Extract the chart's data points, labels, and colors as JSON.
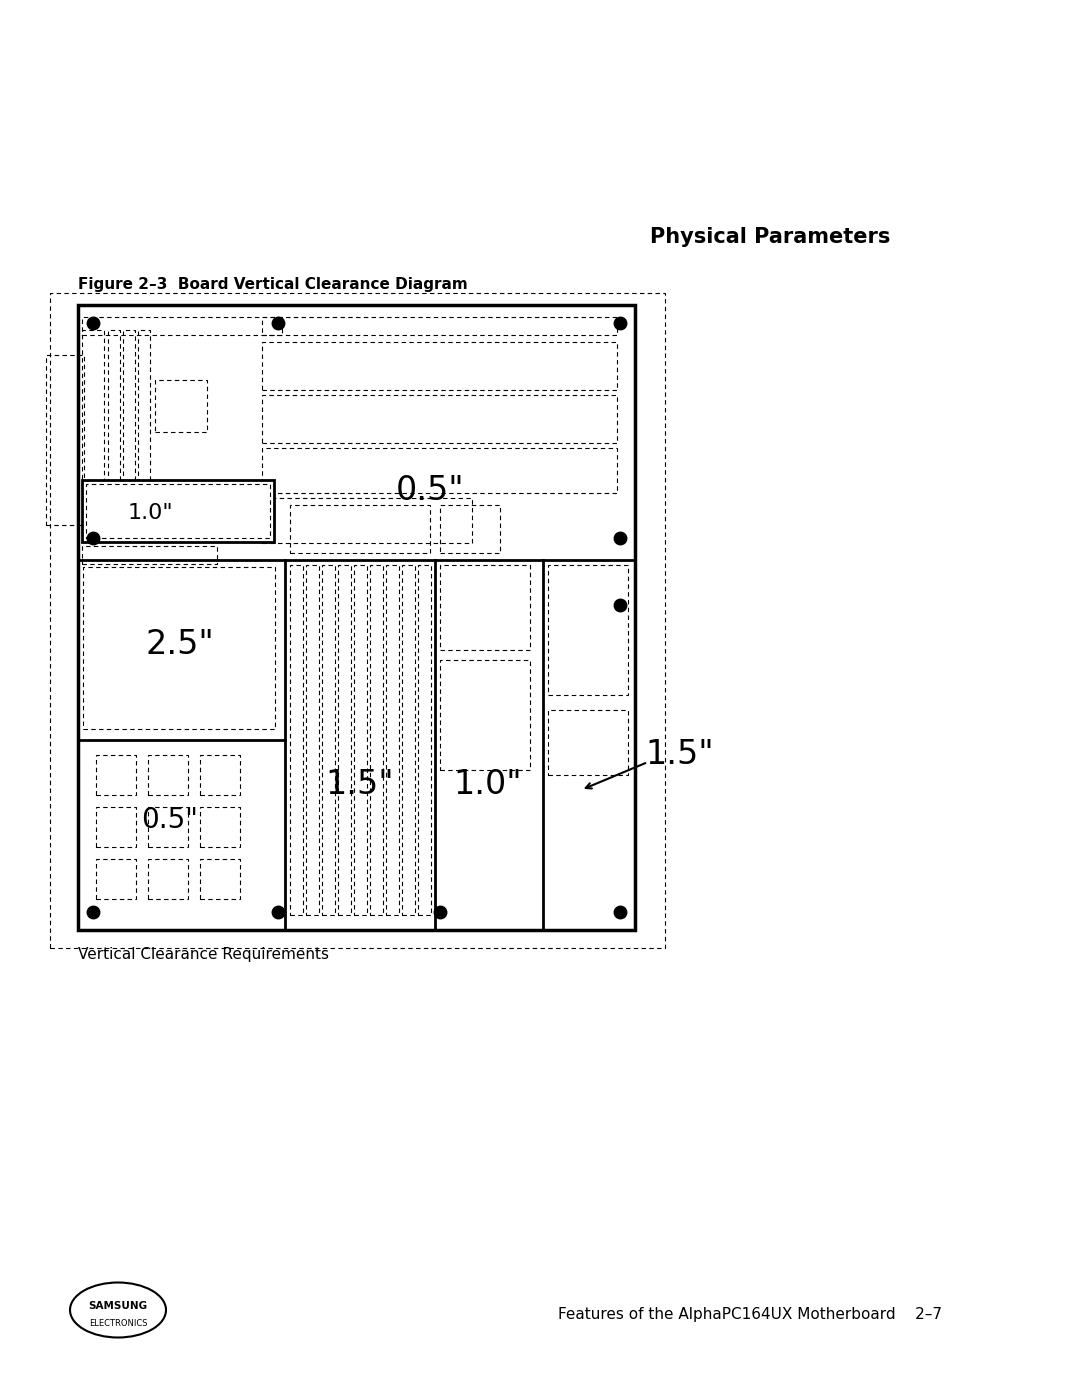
{
  "page_title": "Physical Parameters",
  "figure_title": "Figure 2–3  Board Vertical Clearance Diagram",
  "caption": "Vertical Clearance Requirements",
  "footer_right": "Features of the AlphaPC164UX Motherboard    2–7",
  "background_color": "#ffffff"
}
